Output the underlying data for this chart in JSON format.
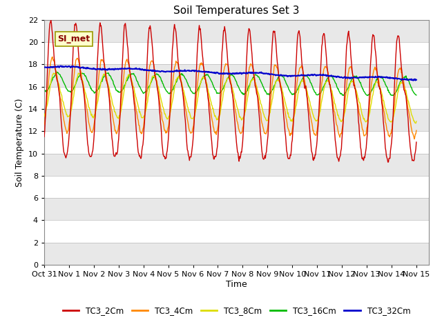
{
  "title": "Soil Temperatures Set 3",
  "xlabel": "Time",
  "ylabel": "Soil Temperature (C)",
  "ylim": [
    0,
    22
  ],
  "xlim": [
    0,
    15.5
  ],
  "xtick_labels": [
    "Oct 31",
    "Nov 1",
    "Nov 2",
    "Nov 3",
    "Nov 4",
    "Nov 5",
    "Nov 6",
    "Nov 7",
    "Nov 8",
    "Nov 9",
    "Nov 10",
    "Nov 11",
    "Nov 12",
    "Nov 13",
    "Nov 14",
    "Nov 15"
  ],
  "xtick_positions": [
    0,
    1,
    2,
    3,
    4,
    5,
    6,
    7,
    8,
    9,
    10,
    11,
    12,
    13,
    14,
    15
  ],
  "ytick_positions": [
    0,
    2,
    4,
    6,
    8,
    10,
    12,
    14,
    16,
    18,
    20,
    22
  ],
  "colors": {
    "TC3_2Cm": "#cc0000",
    "TC3_4Cm": "#ff8800",
    "TC3_8Cm": "#dddd00",
    "TC3_16Cm": "#00bb00",
    "TC3_32Cm": "#0000cc"
  },
  "si_met_label": "SI_met",
  "background_color": "#ffffff",
  "band_colors": [
    "#e8e8e8",
    "#ffffff"
  ],
  "title_fontsize": 11,
  "axis_label_fontsize": 9,
  "tick_fontsize": 8
}
